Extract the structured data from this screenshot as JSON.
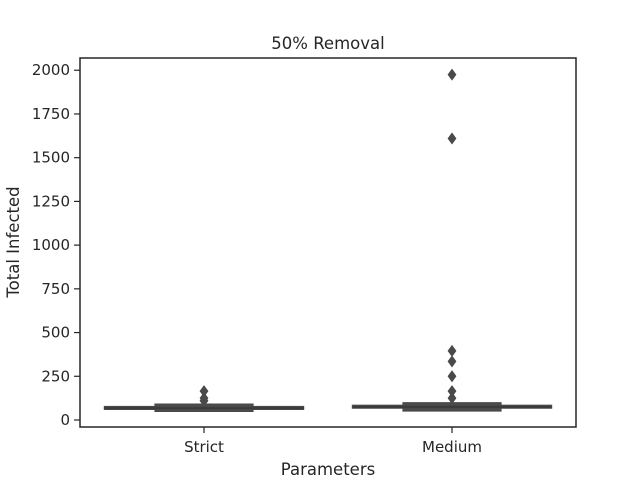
{
  "chart_data": {
    "type": "box",
    "title": "50% Removal",
    "xlabel": "Parameters",
    "ylabel": "Total Infected",
    "categories": [
      "Strict",
      "Medium"
    ],
    "ylim": [
      -40,
      2070
    ],
    "yticks": [
      0,
      250,
      500,
      750,
      1000,
      1250,
      1500,
      1750,
      2000
    ],
    "grid": false,
    "colors": {
      "box": "#4a4a4a",
      "flier": "#4a4a4a",
      "text": "#262626"
    },
    "boxes": [
      {
        "category": "Strict",
        "whisker_low": 60,
        "q1": 63,
        "median": 68,
        "q3": 75,
        "whisker_high": 80,
        "outliers": [
          110,
          125,
          165
        ]
      },
      {
        "category": "Medium",
        "whisker_low": 62,
        "q1": 70,
        "median": 75,
        "q3": 82,
        "whisker_high": 88,
        "outliers": [
          125,
          165,
          250,
          335,
          395,
          1610,
          1975
        ]
      }
    ]
  }
}
